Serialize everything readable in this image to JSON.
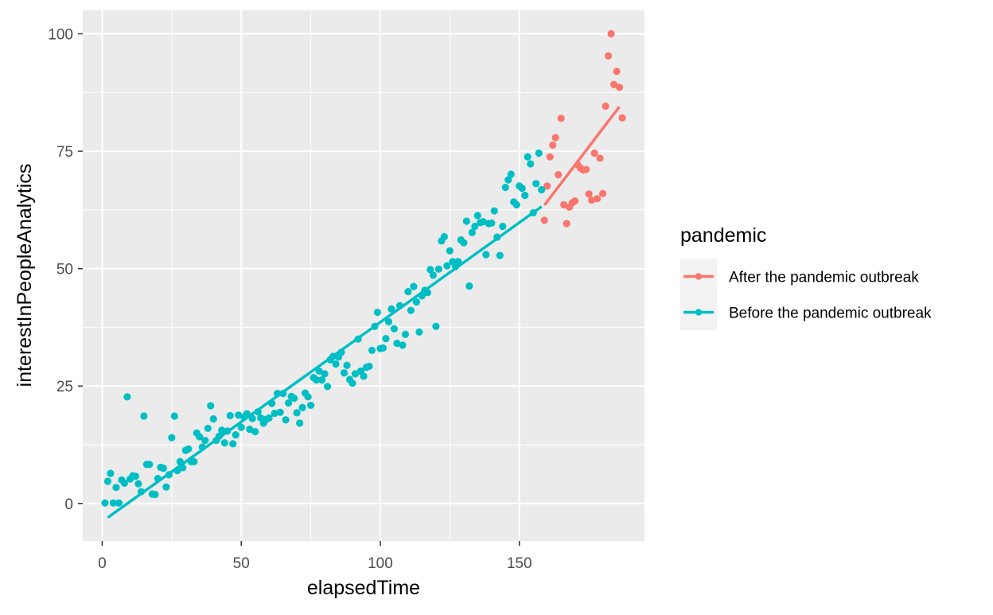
{
  "chart_data": {
    "type": "scatter",
    "xlabel": "elapsedTime",
    "ylabel": "interestInPeopleAnalytics",
    "xlim": [
      -7,
      195
    ],
    "ylim": [
      -8,
      105
    ],
    "x_ticks": [
      0,
      50,
      100,
      150
    ],
    "y_ticks": [
      0,
      25,
      50,
      75,
      100
    ],
    "background": "#EBEBEB",
    "grid": true,
    "legend": {
      "title": "pandemic",
      "position": "right",
      "entries": [
        "After the pandemic outbreak",
        "Before the pandemic outbreak"
      ]
    },
    "series": [
      {
        "name": "After the pandemic outbreak",
        "color": "#F8766D",
        "trend": [
          [
            159,
            63.5
          ],
          [
            186,
            84.5
          ]
        ],
        "points": [
          [
            159,
            60.3
          ],
          [
            160,
            67.6
          ],
          [
            161,
            73.8
          ],
          [
            162,
            76.3
          ],
          [
            163,
            77.9
          ],
          [
            164,
            70.0
          ],
          [
            165,
            82.0
          ],
          [
            166,
            63.6
          ],
          [
            167,
            59.6
          ],
          [
            168,
            63.1
          ],
          [
            169,
            64.0
          ],
          [
            170,
            64.4
          ],
          [
            171,
            72.1
          ],
          [
            172,
            71.4
          ],
          [
            173,
            71.0
          ],
          [
            174,
            71.1
          ],
          [
            175,
            65.9
          ],
          [
            176,
            64.6
          ],
          [
            177,
            74.6
          ],
          [
            178,
            64.9
          ],
          [
            179,
            73.5
          ],
          [
            180,
            66.0
          ],
          [
            181,
            84.6
          ],
          [
            182,
            95.3
          ],
          [
            183,
            100.0
          ],
          [
            184,
            89.2
          ],
          [
            185,
            92.0
          ],
          [
            186,
            88.6
          ],
          [
            187,
            82.1
          ]
        ]
      },
      {
        "name": "Before the pandemic outbreak",
        "color": "#00BFC4",
        "trend": [
          [
            2,
            -3.0
          ],
          [
            158,
            63.2
          ]
        ],
        "points": [
          [
            1,
            0.1
          ],
          [
            2,
            4.7
          ],
          [
            3,
            6.4
          ],
          [
            4,
            0.1
          ],
          [
            5,
            3.4
          ],
          [
            6,
            0.1
          ],
          [
            7,
            5.0
          ],
          [
            8,
            4.3
          ],
          [
            9,
            22.7
          ],
          [
            10,
            5.2
          ],
          [
            11,
            5.9
          ],
          [
            12,
            5.8
          ],
          [
            13,
            4.2
          ],
          [
            14,
            2.5
          ],
          [
            15,
            18.6
          ],
          [
            16,
            8.3
          ],
          [
            17,
            8.3
          ],
          [
            18,
            2.0
          ],
          [
            19,
            1.9
          ],
          [
            20,
            5.3
          ],
          [
            21,
            7.7
          ],
          [
            22,
            7.5
          ],
          [
            23,
            3.5
          ],
          [
            24,
            6.1
          ],
          [
            25,
            14.0
          ],
          [
            26,
            18.6
          ],
          [
            27,
            7.0
          ],
          [
            28,
            8.9
          ],
          [
            29,
            7.6
          ],
          [
            30,
            11.3
          ],
          [
            31,
            11.6
          ],
          [
            32,
            8.9
          ],
          [
            33,
            8.9
          ],
          [
            34,
            15.0
          ],
          [
            35,
            14.2
          ],
          [
            36,
            12.0
          ],
          [
            37,
            13.4
          ],
          [
            38,
            16.0
          ],
          [
            39,
            20.8
          ],
          [
            40,
            18.0
          ],
          [
            41,
            13.4
          ],
          [
            42,
            14.3
          ],
          [
            43,
            15.6
          ],
          [
            44,
            12.9
          ],
          [
            45,
            15.4
          ],
          [
            46,
            18.7
          ],
          [
            47,
            12.7
          ],
          [
            48,
            14.6
          ],
          [
            49,
            18.8
          ],
          [
            50,
            16.2
          ],
          [
            51,
            18.4
          ],
          [
            52,
            19.1
          ],
          [
            53,
            15.8
          ],
          [
            54,
            18.1
          ],
          [
            55,
            15.3
          ],
          [
            56,
            19.5
          ],
          [
            57,
            18.2
          ],
          [
            58,
            17.1
          ],
          [
            59,
            17.9
          ],
          [
            60,
            18.2
          ],
          [
            61,
            21.3
          ],
          [
            62,
            19.2
          ],
          [
            63,
            23.4
          ],
          [
            64,
            19.4
          ],
          [
            65,
            23.4
          ],
          [
            66,
            17.8
          ],
          [
            67,
            21.4
          ],
          [
            68,
            22.8
          ],
          [
            69,
            22.4
          ],
          [
            70,
            19.3
          ],
          [
            71,
            17.1
          ],
          [
            72,
            20.4
          ],
          [
            73,
            23.5
          ],
          [
            74,
            22.7
          ],
          [
            75,
            20.9
          ],
          [
            76,
            26.8
          ],
          [
            77,
            26.3
          ],
          [
            78,
            28.2
          ],
          [
            79,
            26.3
          ],
          [
            80,
            27.6
          ],
          [
            81,
            24.9
          ],
          [
            82,
            30.6
          ],
          [
            83,
            31.3
          ],
          [
            84,
            29.7
          ],
          [
            85,
            31.2
          ],
          [
            86,
            32.2
          ],
          [
            87,
            27.8
          ],
          [
            88,
            29.4
          ],
          [
            89,
            26.4
          ],
          [
            90,
            25.6
          ],
          [
            91,
            27.6
          ],
          [
            92,
            35.0
          ],
          [
            93,
            28.2
          ],
          [
            94,
            27.1
          ],
          [
            95,
            29.0
          ],
          [
            96,
            29.2
          ],
          [
            97,
            32.6
          ],
          [
            98,
            37.7
          ],
          [
            99,
            40.7
          ],
          [
            100,
            33.0
          ],
          [
            101,
            33.1
          ],
          [
            102,
            35.1
          ],
          [
            103,
            38.7
          ],
          [
            104,
            41.4
          ],
          [
            105,
            37.2
          ],
          [
            106,
            34.1
          ],
          [
            107,
            42.1
          ],
          [
            108,
            33.7
          ],
          [
            109,
            36.0
          ],
          [
            110,
            45.1
          ],
          [
            111,
            41.1
          ],
          [
            112,
            46.2
          ],
          [
            113,
            42.9
          ],
          [
            114,
            36.5
          ],
          [
            115,
            44.2
          ],
          [
            116,
            45.4
          ],
          [
            117,
            44.9
          ],
          [
            118,
            49.8
          ],
          [
            119,
            48.6
          ],
          [
            120,
            37.7
          ],
          [
            121,
            49.9
          ],
          [
            122,
            55.9
          ],
          [
            123,
            56.8
          ],
          [
            124,
            50.6
          ],
          [
            125,
            53.8
          ],
          [
            126,
            51.5
          ],
          [
            127,
            50.4
          ],
          [
            128,
            51.5
          ],
          [
            129,
            56.1
          ],
          [
            130,
            55.5
          ],
          [
            131,
            60.1
          ],
          [
            132,
            46.3
          ],
          [
            133,
            57.7
          ],
          [
            134,
            59.0
          ],
          [
            135,
            61.3
          ],
          [
            136,
            59.8
          ],
          [
            137,
            60.0
          ],
          [
            138,
            53.0
          ],
          [
            139,
            59.6
          ],
          [
            140,
            59.7
          ],
          [
            141,
            62.3
          ],
          [
            142,
            56.7
          ],
          [
            143,
            52.8
          ],
          [
            144,
            59.0
          ],
          [
            145,
            67.3
          ],
          [
            146,
            68.9
          ],
          [
            147,
            70.1
          ],
          [
            148,
            64.2
          ],
          [
            149,
            63.6
          ],
          [
            150,
            67.6
          ],
          [
            151,
            67.1
          ],
          [
            152,
            65.6
          ],
          [
            153,
            73.8
          ],
          [
            154,
            72.3
          ],
          [
            155,
            61.9
          ],
          [
            156,
            68.1
          ],
          [
            157,
            74.6
          ],
          [
            158,
            66.8
          ]
        ]
      }
    ]
  }
}
